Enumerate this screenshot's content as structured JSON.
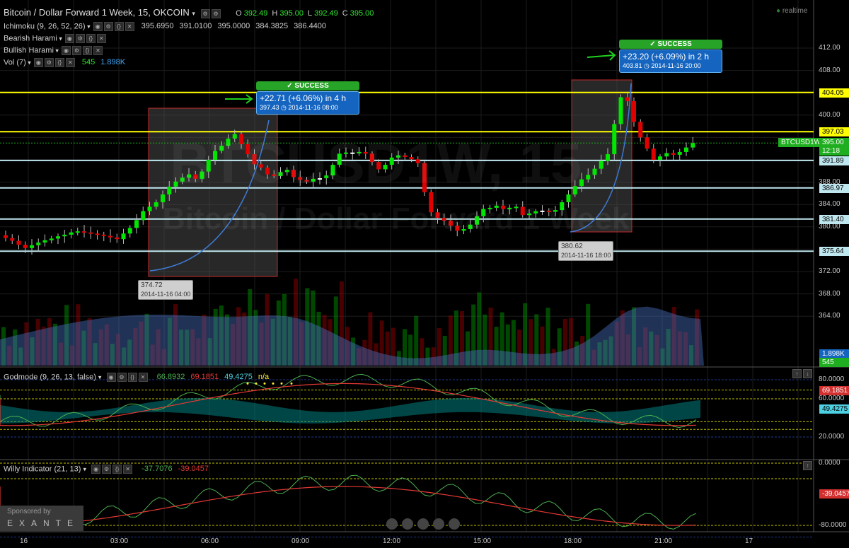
{
  "header": {
    "title": "Bitcoin / Dollar Forward 1 Week, 15, OKCOIN",
    "ohlc": [
      {
        "k": "O",
        "v": "392.49"
      },
      {
        "k": "H",
        "v": "395.00"
      },
      {
        "k": "L",
        "v": "392.49"
      },
      {
        "k": "C",
        "v": "395.00"
      }
    ],
    "realtime_label": "realtime"
  },
  "indicators": [
    {
      "label": "Ichimoku (9, 26, 52, 26)",
      "values": [
        "395.6950",
        "391.0100",
        "395.0000",
        "384.3825",
        "386.4400"
      ]
    },
    {
      "label": "Bearish Harami",
      "values": []
    },
    {
      "label": "Bullish Harami",
      "values": []
    },
    {
      "label": "Vol (7)",
      "values": [
        "545",
        "1.898K"
      ]
    }
  ],
  "watermark": {
    "symbol": "BTCUSD1W, 15",
    "name": "Bitcoin / Dollar Forward 1 Week"
  },
  "price_axis": {
    "ticks": [
      "412.00",
      "408.00",
      "400.00",
      "388.00",
      "384.00",
      "380.00",
      "372.00",
      "368.00",
      "364.00"
    ],
    "tags": [
      {
        "label": "404.05",
        "color": "#ffff00",
        "text_color": "#000"
      },
      {
        "label": "397.03",
        "color": "#ffff00",
        "text_color": "#000"
      },
      {
        "label": "BTCUSD1W",
        "color": "#1fae1f",
        "text_color": "#fff"
      },
      {
        "label": "395.00",
        "color": "#1fae1f",
        "text_color": "#fff"
      },
      {
        "label": "12:18",
        "color": "#1fae1f",
        "text_color": "#fff"
      },
      {
        "label": "391.89",
        "color": "#bfe7ef",
        "text_color": "#000"
      },
      {
        "label": "386.97",
        "color": "#bfe7ef",
        "text_color": "#000"
      },
      {
        "label": "381.40",
        "color": "#bfe7ef",
        "text_color": "#000"
      },
      {
        "label": "375.64",
        "color": "#bfe7ef",
        "text_color": "#000"
      },
      {
        "label": "1.898K",
        "color": "#1565c0",
        "text_color": "#fff"
      },
      {
        "label": "545",
        "color": "#1fae1f",
        "text_color": "#fff"
      }
    ]
  },
  "annotations": {
    "success_label": "SUCCESS",
    "trade1": {
      "gain": "+22.71 (+6.06%) in 4 h",
      "price": "397.43",
      "time": "2014-11-16  08:00"
    },
    "trade2": {
      "gain": "+23.20 (+6.09%) in 2 h",
      "price": "403.81",
      "time": "2014-11-16  20:00"
    },
    "low1": {
      "price": "374.72",
      "time": "2014-11-16 04:00"
    },
    "low2": {
      "price": "380.62",
      "time": "2014-11-16 18:00"
    }
  },
  "godmode": {
    "label": "Godmode (9, 26, 13, false)",
    "values": [
      {
        "v": "66.8932",
        "color": "#4caf50"
      },
      {
        "v": "69.1851",
        "color": "#e53935"
      },
      {
        "v": "49.4275",
        "color": "#4dd0e1"
      },
      {
        "v": "n/a",
        "color": "#ffeb3b"
      }
    ],
    "axis": [
      "80.0000",
      "60.0000",
      "20.0000"
    ],
    "tags": [
      {
        "label": "69.1851",
        "color": "#d32f2f",
        "text_color": "#fff"
      },
      {
        "label": "49.4275",
        "color": "#4dd0e1",
        "text_color": "#000"
      }
    ]
  },
  "willy": {
    "label": "Willy Indicator (21, 13)",
    "values": [
      {
        "v": "-37.7076",
        "color": "#4caf50"
      },
      {
        "v": "-39.0457",
        "color": "#e53935"
      }
    ],
    "axis": [
      "0.0000",
      "-80.0000"
    ],
    "tags": [
      {
        "label": "-39.0457",
        "color": "#d32f2f",
        "text_color": "#fff"
      }
    ]
  },
  "sponsor": {
    "line1": "Sponsored by",
    "line2": "EXANTE"
  },
  "time_axis": [
    "16",
    "03:00",
    "06:00",
    "09:00",
    "12:00",
    "15:00",
    "18:00",
    "21:00",
    "17"
  ],
  "colors": {
    "up": "#00e600",
    "down": "#e00000",
    "support": "#bfe7ef",
    "resistance": "#ffff00"
  }
}
